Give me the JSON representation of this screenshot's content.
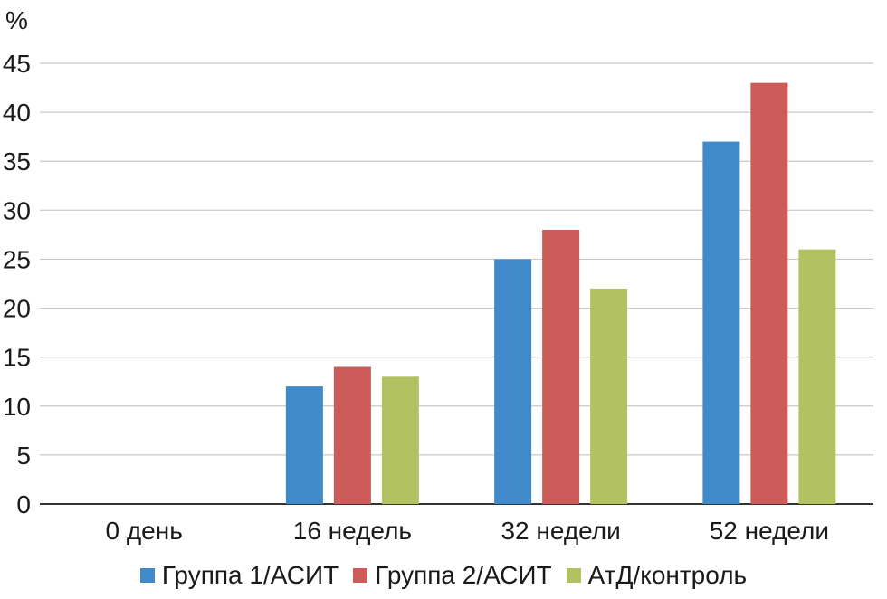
{
  "chart_data": {
    "type": "bar",
    "ylabel": "%",
    "ylim": [
      0,
      45
    ],
    "yticks": [
      "0",
      "5",
      "10",
      "15",
      "20",
      "25",
      "30",
      "35",
      "40",
      "45"
    ],
    "categories": [
      "0 день",
      "16 недель",
      "32 недели",
      "52 недели"
    ],
    "series": [
      {
        "name": "Группа 1/АСИТ",
        "color": "#418AC9",
        "values": [
          0,
          12,
          25,
          37
        ]
      },
      {
        "name": "Группа 2/АСИТ",
        "color": "#CD5B59",
        "values": [
          0,
          14,
          28,
          43
        ]
      },
      {
        "name": "АтД/контроль",
        "color": "#B2C260",
        "values": [
          0,
          13,
          22,
          26
        ]
      }
    ],
    "grid": true,
    "legend_position": "bottom"
  }
}
